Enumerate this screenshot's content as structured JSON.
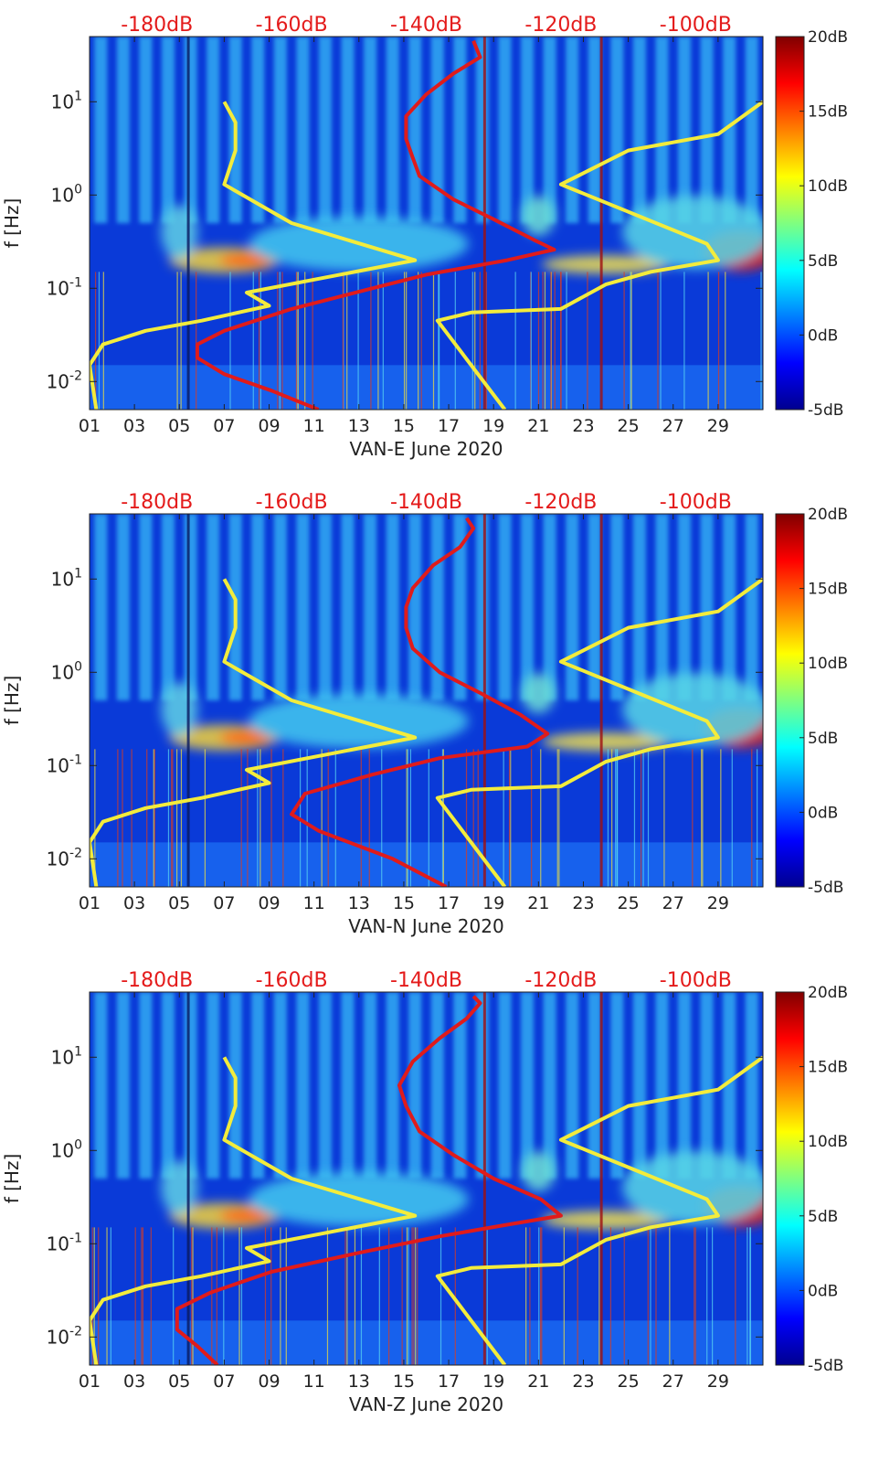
{
  "chart_data": [
    {
      "type": "heatmap",
      "station": "VAN-E",
      "xlabel": "VAN-E June 2020",
      "ylabel": "f [Hz]",
      "xlim": [
        1,
        31
      ],
      "ylim": [
        0.005,
        50
      ],
      "yscale": "log",
      "xticks": [
        1,
        3,
        5,
        7,
        9,
        11,
        13,
        15,
        17,
        19,
        21,
        23,
        25,
        27,
        29
      ],
      "xtick_labels": [
        "01",
        "03",
        "05",
        "07",
        "09",
        "11",
        "13",
        "15",
        "17",
        "19",
        "21",
        "23",
        "25",
        "27",
        "29"
      ],
      "yticks": [
        0.01,
        0.1,
        1,
        10
      ],
      "ytick_labels": [
        "10^-2",
        "10^-1",
        "10^0",
        "10^1"
      ],
      "top_axis": {
        "range_db": [
          -190,
          -90
        ],
        "ticks": [
          -180,
          -160,
          -140,
          -120,
          -100
        ],
        "labels": [
          "-180dB",
          "-160dB",
          "-140dB",
          "-120dB",
          "-100dB"
        ],
        "color": "#e41b1b"
      },
      "colorbar": {
        "range_db": [
          -5,
          20
        ],
        "ticks": [
          -5,
          0,
          5,
          10,
          15,
          20
        ],
        "labels": [
          "-5dB",
          "0dB",
          "5dB",
          "10dB",
          "15dB",
          "20dB"
        ]
      },
      "series": [
        {
          "name": "PSD noise curve (top dB axis)",
          "color": "#e01b1b",
          "points": [
            [
              -156,
              0.005
            ],
            [
              -163,
              0.008
            ],
            [
              -170,
              0.012
            ],
            [
              -174,
              0.018
            ],
            [
              -174,
              0.025
            ],
            [
              -170,
              0.035
            ],
            [
              -160,
              0.06
            ],
            [
              -148,
              0.1
            ],
            [
              -140,
              0.14
            ],
            [
              -128,
              0.2
            ],
            [
              -121,
              0.26
            ],
            [
              -124,
              0.33
            ],
            [
              -130,
              0.55
            ],
            [
              -136,
              0.9
            ],
            [
              -141,
              1.6
            ],
            [
              -142,
              2.5
            ],
            [
              -143,
              4
            ],
            [
              -143,
              7
            ],
            [
              -140,
              12
            ],
            [
              -136,
              20
            ],
            [
              -132,
              30
            ],
            [
              -133,
              45
            ]
          ]
        },
        {
          "name": "Reference model curve 1",
          "color": "#f3ec3c",
          "points": [
            [
              1.3,
              0.005
            ],
            [
              1.0,
              0.015
            ],
            [
              1.6,
              0.025
            ],
            [
              3.5,
              0.035
            ],
            [
              6,
              0.045
            ],
            [
              9,
              0.065
            ],
            [
              8,
              0.09
            ],
            [
              15.5,
              0.2
            ],
            [
              10,
              0.5
            ],
            [
              7,
              1.3
            ],
            [
              7.5,
              3
            ],
            [
              7.5,
              6
            ],
            [
              7,
              10
            ]
          ]
        },
        {
          "name": "Reference model curve 2",
          "color": "#f3ec3c",
          "points": [
            [
              19.5,
              0.005
            ],
            [
              16.5,
              0.045
            ],
            [
              18,
              0.055
            ],
            [
              22,
              0.06
            ],
            [
              24,
              0.11
            ],
            [
              26,
              0.15
            ],
            [
              29,
              0.2
            ],
            [
              28.5,
              0.3
            ],
            [
              22,
              1.3
            ],
            [
              25,
              3
            ],
            [
              29,
              4.5
            ],
            [
              31,
              10
            ]
          ]
        }
      ]
    },
    {
      "type": "heatmap",
      "station": "VAN-N",
      "xlabel": "VAN-N June 2020",
      "ylabel": "f [Hz]",
      "xlim": [
        1,
        31
      ],
      "ylim": [
        0.005,
        50
      ],
      "yscale": "log",
      "xticks": [
        1,
        3,
        5,
        7,
        9,
        11,
        13,
        15,
        17,
        19,
        21,
        23,
        25,
        27,
        29
      ],
      "xtick_labels": [
        "01",
        "03",
        "05",
        "07",
        "09",
        "11",
        "13",
        "15",
        "17",
        "19",
        "21",
        "23",
        "25",
        "27",
        "29"
      ],
      "yticks": [
        0.01,
        0.1,
        1,
        10
      ],
      "ytick_labels": [
        "10^-2",
        "10^-1",
        "10^0",
        "10^1"
      ],
      "top_axis": {
        "range_db": [
          -190,
          -90
        ],
        "ticks": [
          -180,
          -160,
          -140,
          -120,
          -100
        ],
        "labels": [
          "-180dB",
          "-160dB",
          "-140dB",
          "-120dB",
          "-100dB"
        ],
        "color": "#e41b1b"
      },
      "colorbar": {
        "range_db": [
          -5,
          20
        ],
        "ticks": [
          -5,
          0,
          5,
          10,
          15,
          20
        ],
        "labels": [
          "-5dB",
          "0dB",
          "5dB",
          "10dB",
          "15dB",
          "20dB"
        ]
      },
      "series": [
        {
          "name": "PSD noise curve (top dB axis)",
          "color": "#e01b1b",
          "points": [
            [
              -137,
              0.005
            ],
            [
              -145,
              0.01
            ],
            [
              -156,
              0.02
            ],
            [
              -160,
              0.03
            ],
            [
              -158,
              0.05
            ],
            [
              -148,
              0.08
            ],
            [
              -138,
              0.12
            ],
            [
              -125,
              0.16
            ],
            [
              -122,
              0.22
            ],
            [
              -126,
              0.35
            ],
            [
              -132,
              0.6
            ],
            [
              -138,
              1.0
            ],
            [
              -142,
              1.8
            ],
            [
              -143,
              3
            ],
            [
              -143,
              5
            ],
            [
              -142,
              8
            ],
            [
              -139,
              14
            ],
            [
              -135,
              22
            ],
            [
              -133,
              35
            ],
            [
              -134,
              45
            ]
          ]
        },
        {
          "name": "Reference model curve 1",
          "color": "#f3ec3c",
          "points": [
            [
              1.3,
              0.005
            ],
            [
              1.0,
              0.015
            ],
            [
              1.6,
              0.025
            ],
            [
              3.5,
              0.035
            ],
            [
              6,
              0.045
            ],
            [
              9,
              0.065
            ],
            [
              8,
              0.09
            ],
            [
              15.5,
              0.2
            ],
            [
              10,
              0.5
            ],
            [
              7,
              1.3
            ],
            [
              7.5,
              3
            ],
            [
              7.5,
              6
            ],
            [
              7,
              10
            ]
          ]
        },
        {
          "name": "Reference model curve 2",
          "color": "#f3ec3c",
          "points": [
            [
              19.5,
              0.005
            ],
            [
              16.5,
              0.045
            ],
            [
              18,
              0.055
            ],
            [
              22,
              0.06
            ],
            [
              24,
              0.11
            ],
            [
              26,
              0.15
            ],
            [
              29,
              0.2
            ],
            [
              28.5,
              0.3
            ],
            [
              22,
              1.3
            ],
            [
              25,
              3
            ],
            [
              29,
              4.5
            ],
            [
              31,
              10
            ]
          ]
        }
      ]
    },
    {
      "type": "heatmap",
      "station": "VAN-Z",
      "xlabel": "VAN-Z June 2020",
      "ylabel": "f [Hz]",
      "xlim": [
        1,
        31
      ],
      "ylim": [
        0.005,
        50
      ],
      "yscale": "log",
      "xticks": [
        1,
        3,
        5,
        7,
        9,
        11,
        13,
        15,
        17,
        19,
        21,
        23,
        25,
        27,
        29
      ],
      "xtick_labels": [
        "01",
        "03",
        "05",
        "07",
        "09",
        "11",
        "13",
        "15",
        "17",
        "19",
        "21",
        "23",
        "25",
        "27",
        "29"
      ],
      "yticks": [
        0.01,
        0.1,
        1,
        10
      ],
      "ytick_labels": [
        "10^-2",
        "10^-1",
        "10^0",
        "10^1"
      ],
      "top_axis": {
        "range_db": [
          -190,
          -90
        ],
        "ticks": [
          -180,
          -160,
          -140,
          -120,
          -100
        ],
        "labels": [
          "-180dB",
          "-160dB",
          "-140dB",
          "-120dB",
          "-100dB"
        ],
        "color": "#e41b1b"
      },
      "colorbar": {
        "range_db": [
          -5,
          20
        ],
        "ticks": [
          -5,
          0,
          5,
          10,
          15,
          20
        ],
        "labels": [
          "-5dB",
          "0dB",
          "5dB",
          "10dB",
          "15dB",
          "20dB"
        ]
      },
      "series": [
        {
          "name": "PSD noise curve (top dB axis)",
          "color": "#e01b1b",
          "points": [
            [
              -171,
              0.005
            ],
            [
              -174,
              0.008
            ],
            [
              -177,
              0.012
            ],
            [
              -177,
              0.02
            ],
            [
              -172,
              0.03
            ],
            [
              -163,
              0.05
            ],
            [
              -150,
              0.08
            ],
            [
              -138,
              0.12
            ],
            [
              -128,
              0.16
            ],
            [
              -120,
              0.2
            ],
            [
              -123,
              0.3
            ],
            [
              -130,
              0.5
            ],
            [
              -136,
              0.9
            ],
            [
              -141,
              1.6
            ],
            [
              -143,
              3
            ],
            [
              -144,
              5
            ],
            [
              -142,
              9
            ],
            [
              -138,
              16
            ],
            [
              -134,
              26
            ],
            [
              -132,
              38
            ],
            [
              -133,
              45
            ]
          ]
        },
        {
          "name": "Reference model curve 1",
          "color": "#f3ec3c",
          "points": [
            [
              1.3,
              0.005
            ],
            [
              1.0,
              0.015
            ],
            [
              1.6,
              0.025
            ],
            [
              3.5,
              0.035
            ],
            [
              6,
              0.045
            ],
            [
              9,
              0.065
            ],
            [
              8,
              0.09
            ],
            [
              15.5,
              0.2
            ],
            [
              10,
              0.5
            ],
            [
              7,
              1.3
            ],
            [
              7.5,
              3
            ],
            [
              7.5,
              6
            ],
            [
              7,
              10
            ]
          ]
        },
        {
          "name": "Reference model curve 2",
          "color": "#f3ec3c",
          "points": [
            [
              19.5,
              0.005
            ],
            [
              16.5,
              0.045
            ],
            [
              18,
              0.055
            ],
            [
              22,
              0.06
            ],
            [
              24,
              0.11
            ],
            [
              26,
              0.15
            ],
            [
              29,
              0.2
            ],
            [
              28.5,
              0.3
            ],
            [
              22,
              1.3
            ],
            [
              25,
              3
            ],
            [
              29,
              4.5
            ],
            [
              31,
              10
            ]
          ]
        }
      ]
    }
  ]
}
